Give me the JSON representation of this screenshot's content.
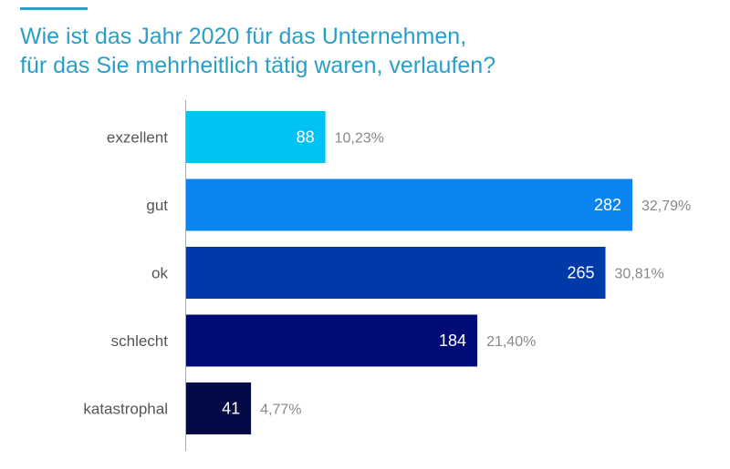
{
  "chart_data": {
    "type": "bar",
    "orientation": "horizontal",
    "title": "Wie ist das Jahr 2020 für das Unternehmen,\nfür das Sie mehrheitlich tätig waren, verlaufen?",
    "categories": [
      "exzellent",
      "gut",
      "ok",
      "schlecht",
      "katastrophal"
    ],
    "values": [
      88,
      282,
      265,
      184,
      41
    ],
    "percent_labels": [
      "10,23%",
      "32,79%",
      "30,81%",
      "21,40%",
      "4,77%"
    ],
    "colors": [
      "#00c3f5",
      "#0a84f0",
      "#0039a8",
      "#000b78",
      "#030a45"
    ],
    "xlim": [
      0,
      282
    ],
    "grid": false,
    "legend": "none"
  },
  "accent_color": "#2a9fc6"
}
